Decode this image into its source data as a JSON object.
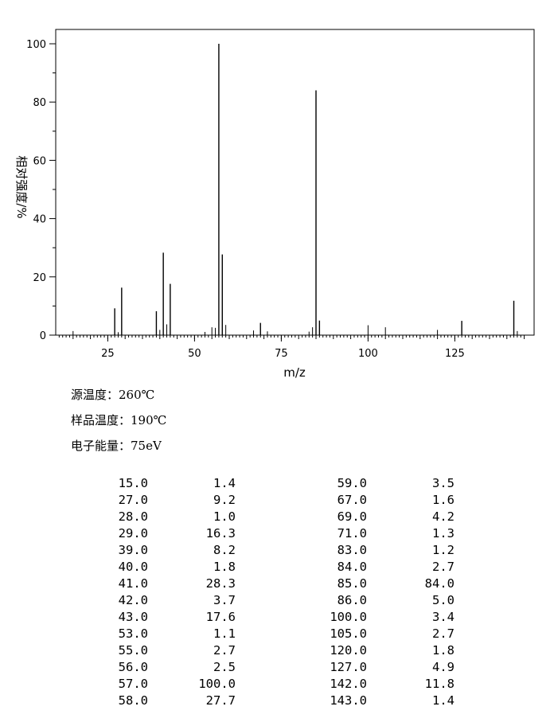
{
  "chart_data": {
    "type": "bar",
    "xlabel": "m/z",
    "ylabel": "相对强度/%",
    "xlim": [
      10,
      145
    ],
    "ylim": [
      0,
      105
    ],
    "x_ticks": [
      25,
      50,
      75,
      100,
      125
    ],
    "y_ticks": [
      0,
      20,
      40,
      60,
      80,
      100
    ],
    "grid": false,
    "peaks": [
      {
        "mz": 15.0,
        "intensity": 1.4
      },
      {
        "mz": 27.0,
        "intensity": 9.2
      },
      {
        "mz": 28.0,
        "intensity": 1.0
      },
      {
        "mz": 29.0,
        "intensity": 16.3
      },
      {
        "mz": 39.0,
        "intensity": 8.2
      },
      {
        "mz": 40.0,
        "intensity": 1.8
      },
      {
        "mz": 41.0,
        "intensity": 28.3
      },
      {
        "mz": 42.0,
        "intensity": 3.7
      },
      {
        "mz": 43.0,
        "intensity": 17.6
      },
      {
        "mz": 53.0,
        "intensity": 1.1
      },
      {
        "mz": 55.0,
        "intensity": 2.7
      },
      {
        "mz": 56.0,
        "intensity": 2.5
      },
      {
        "mz": 57.0,
        "intensity": 100.0
      },
      {
        "mz": 58.0,
        "intensity": 27.7
      },
      {
        "mz": 59.0,
        "intensity": 3.5
      },
      {
        "mz": 67.0,
        "intensity": 1.6
      },
      {
        "mz": 69.0,
        "intensity": 4.2
      },
      {
        "mz": 71.0,
        "intensity": 1.3
      },
      {
        "mz": 83.0,
        "intensity": 1.2
      },
      {
        "mz": 84.0,
        "intensity": 2.7
      },
      {
        "mz": 85.0,
        "intensity": 84.0
      },
      {
        "mz": 86.0,
        "intensity": 5.0
      },
      {
        "mz": 100.0,
        "intensity": 3.4
      },
      {
        "mz": 105.0,
        "intensity": 2.7
      },
      {
        "mz": 120.0,
        "intensity": 1.8
      },
      {
        "mz": 127.0,
        "intensity": 4.9
      },
      {
        "mz": 142.0,
        "intensity": 11.8
      },
      {
        "mz": 143.0,
        "intensity": 1.4
      }
    ]
  },
  "conditions": [
    {
      "label": "源温度：",
      "value": "260℃"
    },
    {
      "label": "样品温度：",
      "value": "190℃"
    },
    {
      "label": "电子能量：",
      "value": "75eV"
    }
  ],
  "table_left": [
    [
      "15.0",
      "1.4"
    ],
    [
      "27.0",
      "9.2"
    ],
    [
      "28.0",
      "1.0"
    ],
    [
      "29.0",
      "16.3"
    ],
    [
      "39.0",
      "8.2"
    ],
    [
      "40.0",
      "1.8"
    ],
    [
      "41.0",
      "28.3"
    ],
    [
      "42.0",
      "3.7"
    ],
    [
      "43.0",
      "17.6"
    ],
    [
      "53.0",
      "1.1"
    ],
    [
      "55.0",
      "2.7"
    ],
    [
      "56.0",
      "2.5"
    ],
    [
      "57.0",
      "100.0"
    ],
    [
      "58.0",
      "27.7"
    ]
  ],
  "table_right": [
    [
      "59.0",
      "3.5"
    ],
    [
      "67.0",
      "1.6"
    ],
    [
      "69.0",
      "4.2"
    ],
    [
      "71.0",
      "1.3"
    ],
    [
      "83.0",
      "1.2"
    ],
    [
      "84.0",
      "2.7"
    ],
    [
      "85.0",
      "84.0"
    ],
    [
      "86.0",
      "5.0"
    ],
    [
      "100.0",
      "3.4"
    ],
    [
      "105.0",
      "2.7"
    ],
    [
      "120.0",
      "1.8"
    ],
    [
      "127.0",
      "4.9"
    ],
    [
      "142.0",
      "11.8"
    ],
    [
      "143.0",
      "1.4"
    ]
  ]
}
